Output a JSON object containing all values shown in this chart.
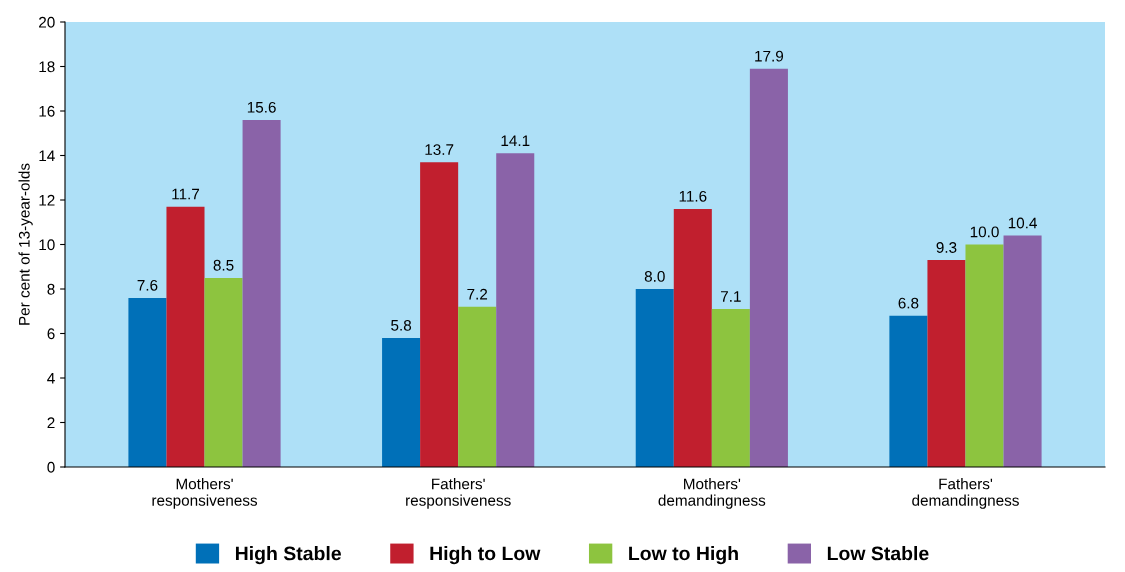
{
  "chart_data": {
    "type": "bar",
    "ylabel": "Per cent of 13-year-olds",
    "categories": [
      "Mothers'\nresponsiveness",
      "Fathers'\nresponsiveness",
      "Mothers'\ndemandingness",
      "Fathers'\ndemandingness"
    ],
    "series": [
      {
        "name": "High Stable",
        "color": "#0070b8",
        "values": [
          7.6,
          5.8,
          8.0,
          6.8
        ]
      },
      {
        "name": "High to Low",
        "color": "#c11f2e",
        "values": [
          11.7,
          13.7,
          11.6,
          9.3
        ]
      },
      {
        "name": "Low to High",
        "color": "#8dc43f",
        "values": [
          8.5,
          7.2,
          7.1,
          10.0
        ]
      },
      {
        "name": "Low Stable",
        "color": "#8a63a8",
        "values": [
          15.6,
          14.1,
          17.9,
          10.4
        ]
      }
    ],
    "value_labels": [
      [
        "7.6",
        "5.8",
        "8.0",
        "6.8"
      ],
      [
        "11.7",
        "13.7",
        "11.6",
        "9.3"
      ],
      [
        "8.5",
        "7.2",
        "7.1",
        "10.0"
      ],
      [
        "15.6",
        "14.1",
        "17.9",
        "10.4"
      ]
    ],
    "ylim": [
      0,
      20
    ],
    "yticks": [
      0,
      2,
      4,
      6,
      8,
      10,
      12,
      14,
      16,
      18,
      20
    ],
    "grid": false,
    "legend": "bottom"
  }
}
